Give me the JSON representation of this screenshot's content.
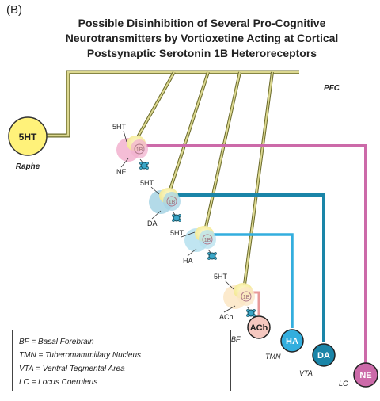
{
  "panel_label": "(B)",
  "title_lines": [
    "Possible Disinhibition of Several Pro-Cognitive",
    "Neurotransmitters by Vortioxetine Acting at Cortical",
    "Postsynaptic Serotonin 1B Heteroreceptors"
  ],
  "region_label": "PFC",
  "raphe": {
    "node": "5HT",
    "label": "Raphe"
  },
  "receptor_label": "1B",
  "neurons": [
    {
      "transmitter": "5HT",
      "target": "NE"
    },
    {
      "transmitter": "5HT",
      "target": "DA"
    },
    {
      "transmitter": "5HT",
      "target": "HA"
    },
    {
      "transmitter": "5HT",
      "target": "ACh"
    }
  ],
  "source_nuclei": [
    {
      "node": "ACh",
      "region": "BF"
    },
    {
      "node": "HA",
      "region": "TMN"
    },
    {
      "node": "DA",
      "region": "VTA"
    },
    {
      "node": "NE",
      "region": "LC"
    }
  ],
  "legend": [
    "BF = Basal Forebrain",
    "TMN = Tuberomammillary Nucleus",
    "VTA = Ventral Tegmental Area",
    "LC = Locus Coeruleus"
  ],
  "colors": {
    "axon": "#d8d48a",
    "axon_edge": "#6a6a2a",
    "raphe_fill": "#fff27a",
    "ne": "#cc6aa9",
    "ne_fill": "#f2b2cf",
    "da": "#1a85a8",
    "da_fill": "#2f94b3",
    "ha": "#33aede",
    "ha_fill": "#4bb8e6",
    "ach": "#e89a9a",
    "ach_fill": "#f5c8c0"
  },
  "icons": [
    "vortioxetine-drug-icon"
  ]
}
